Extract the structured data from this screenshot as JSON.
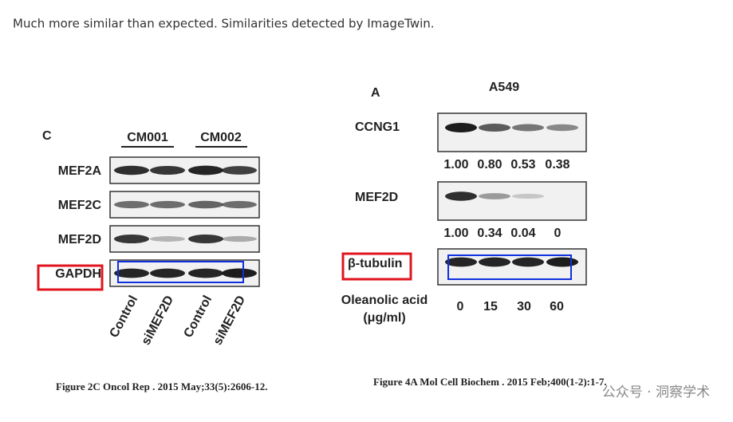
{
  "caption": "Much more similar than expected. Similarities detected by ImageTwin.",
  "left_figure": {
    "panel": "C",
    "groups": [
      "CM001",
      "CM002"
    ],
    "rows": [
      "MEF2A",
      "MEF2C",
      "MEF2D",
      "GAPDH"
    ],
    "lanes": [
      "Control",
      "siMEF2D",
      "Control",
      "siMEF2D"
    ],
    "citation": "Figure 2C Oncol Rep . 2015 May;33(5):2606-12."
  },
  "right_figure": {
    "panel": "A",
    "cell_line": "A549",
    "rows": [
      {
        "label": "CCNG1",
        "quantities": [
          "1.00",
          "0.80",
          "0.53",
          "0.38"
        ]
      },
      {
        "label": "MEF2D",
        "quantities": [
          "1.00",
          "0.34",
          "0.04",
          "0"
        ]
      },
      {
        "label": "β-tubulin"
      }
    ],
    "treatment": "Oleanolic acid",
    "treatment_unit": "(μg/ml)",
    "doses": [
      "0",
      "15",
      "30",
      "60"
    ],
    "citation": "Figure 4A Mol Cell Biochem . 2015 Feb;400(1-2):1-7."
  },
  "watermark": "公众号 · 洞察学术"
}
